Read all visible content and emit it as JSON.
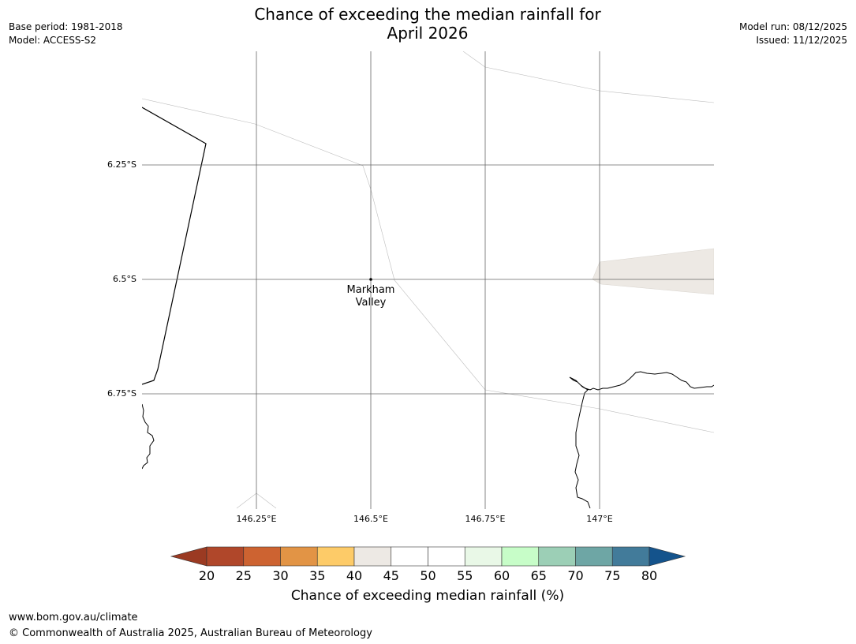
{
  "header": {
    "title_line1": "Chance of exceeding the median rainfall for",
    "title_line2": "April 2026",
    "base_period": "Base period: 1981-2018",
    "model": "Model: ACCESS-S2",
    "model_run": "Model run: 08/12/2025",
    "issued": "Issued: 11/12/2025"
  },
  "map": {
    "latitude_labels": [
      "6.25°S",
      "6.5°S",
      "6.75°S"
    ],
    "longitude_labels": [
      "146.25°E",
      "146.5°E",
      "146.75°E",
      "147°E"
    ],
    "location": {
      "name_line1": "Markham",
      "name_line2": "Valley",
      "lat": -6.5,
      "lon": 146.5
    },
    "shaded_region_category": "40-45"
  },
  "colorbar": {
    "label": "Chance of exceeding median rainfall (%)",
    "ticks": [
      "20",
      "25",
      "30",
      "35",
      "40",
      "45",
      "50",
      "55",
      "60",
      "65",
      "70",
      "75",
      "80"
    ],
    "colors": {
      "below_20": "#9b3a22",
      "20-25": "#b0472a",
      "25-30": "#cd6331",
      "30-35": "#e29445",
      "35-40": "#fdcb68",
      "40-45": "#ede9e4",
      "45-50": "#ffffff",
      "50-55": "#ffffff",
      "55-60": "#e9f8e7",
      "60-65": "#c7fdc8",
      "65-70": "#9ccfb6",
      "70-75": "#6ea6a5",
      "75-80": "#427b9a",
      "above_80": "#14538c"
    }
  },
  "footer": {
    "website": "www.bom.gov.au/climate",
    "copyright": "© Commonwealth of Australia 2025, Australian Bureau of Meteorology"
  }
}
